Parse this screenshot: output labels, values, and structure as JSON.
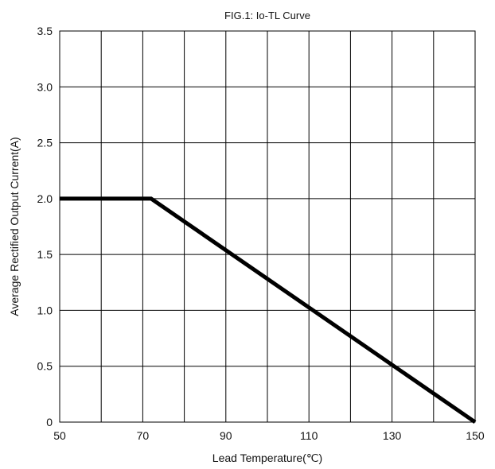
{
  "chart_data": {
    "type": "line",
    "title": "FIG.1: Io-TL Curve",
    "xlabel": "Lead Temperature(℃)",
    "ylabel": "Average Rectified Output Current(A)",
    "xlim": [
      50,
      150
    ],
    "ylim": [
      0,
      3.5
    ],
    "x_ticks": [
      50,
      70,
      90,
      110,
      130,
      150
    ],
    "x_tick_labels": [
      "50",
      "70",
      "90",
      "110",
      "130",
      "150"
    ],
    "x_minor_grid": [
      60,
      80,
      100,
      120,
      140
    ],
    "y_ticks": [
      0,
      0.5,
      1.0,
      1.5,
      2.0,
      2.5,
      3.0,
      3.5
    ],
    "y_tick_labels": [
      "0",
      "0.5",
      "1.0",
      "1.5",
      "2.0",
      "2.5",
      "3.0",
      "3.5"
    ],
    "grid": true,
    "series": [
      {
        "color": "#000000",
        "points": [
          {
            "x": 50,
            "y": 2.0
          },
          {
            "x": 72,
            "y": 2.0
          },
          {
            "x": 150,
            "y": 0
          }
        ]
      }
    ]
  }
}
